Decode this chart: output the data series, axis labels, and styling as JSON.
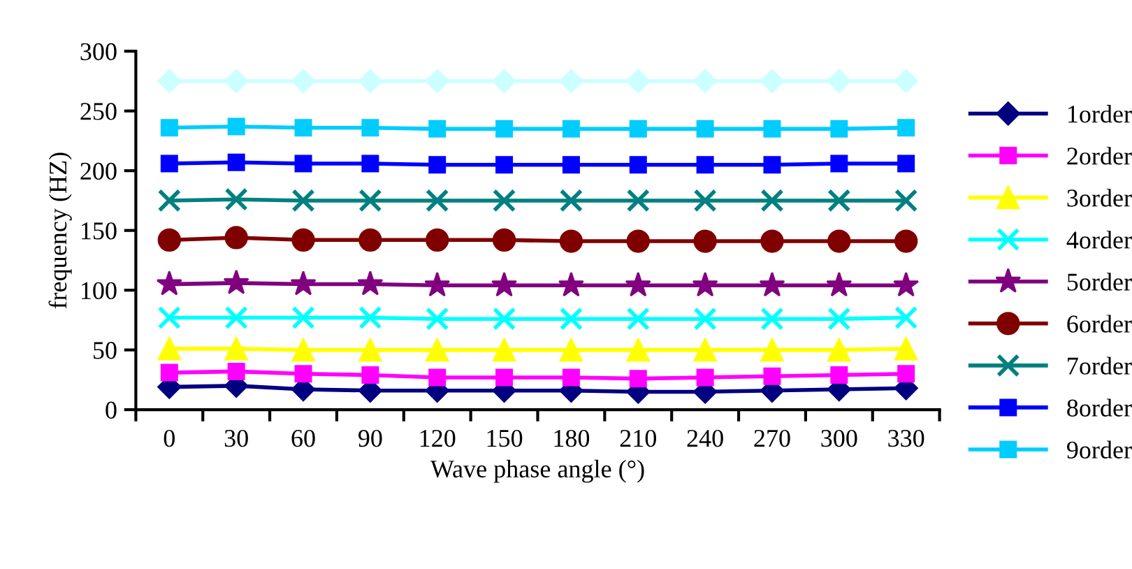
{
  "chart_data": {
    "type": "line",
    "xlabel": "Wave phase angle (°)",
    "ylabel": "frequency (HZ)",
    "categories": [
      "0",
      "30",
      "60",
      "90",
      "120",
      "150",
      "180",
      "210",
      "240",
      "270",
      "300",
      "330"
    ],
    "ylim": [
      0,
      300
    ],
    "yticks": [
      0,
      50,
      100,
      150,
      200,
      250,
      300
    ],
    "grid": false,
    "legend": "right",
    "series": [
      {
        "name": "1order",
        "color": "#000080",
        "marker": "diamond",
        "values": [
          19,
          20,
          17,
          16,
          16,
          16,
          16,
          15,
          15,
          16,
          17,
          18
        ]
      },
      {
        "name": "2order",
        "color": "#ff00ff",
        "marker": "square",
        "values": [
          31,
          32,
          30,
          29,
          27,
          27,
          27,
          26,
          27,
          28,
          29,
          30
        ]
      },
      {
        "name": "3order",
        "color": "#ffff00",
        "marker": "triangle",
        "values": [
          51,
          51,
          50,
          50,
          50,
          50,
          50,
          50,
          50,
          50,
          50,
          51
        ]
      },
      {
        "name": "4order",
        "color": "#00ffff",
        "marker": "cross",
        "values": [
          77,
          77,
          77,
          77,
          76,
          76,
          76,
          76,
          76,
          76,
          76,
          77
        ]
      },
      {
        "name": "5order",
        "color": "#800080",
        "marker": "star",
        "values": [
          105,
          106,
          105,
          105,
          104,
          104,
          104,
          104,
          104,
          104,
          104,
          104
        ]
      },
      {
        "name": "6order",
        "color": "#800000",
        "marker": "circle",
        "values": [
          142,
          144,
          142,
          142,
          142,
          142,
          141,
          141,
          141,
          141,
          141,
          141
        ]
      },
      {
        "name": "7order",
        "color": "#008080",
        "marker": "cross",
        "values": [
          175,
          176,
          175,
          175,
          175,
          175,
          175,
          175,
          175,
          175,
          175,
          175
        ]
      },
      {
        "name": "8order",
        "color": "#0000ff",
        "marker": "square",
        "values": [
          206,
          207,
          206,
          206,
          205,
          205,
          205,
          205,
          205,
          205,
          206,
          206
        ]
      },
      {
        "name": "9order",
        "color": "#00ccff",
        "marker": "square",
        "values": [
          236,
          237,
          236,
          236,
          235,
          235,
          235,
          235,
          235,
          235,
          235,
          236
        ]
      },
      {
        "color": "#ccffff",
        "marker": "diamond",
        "values": [
          275,
          275,
          275,
          275,
          275,
          275,
          275,
          275,
          275,
          275,
          275,
          275
        ]
      }
    ]
  }
}
